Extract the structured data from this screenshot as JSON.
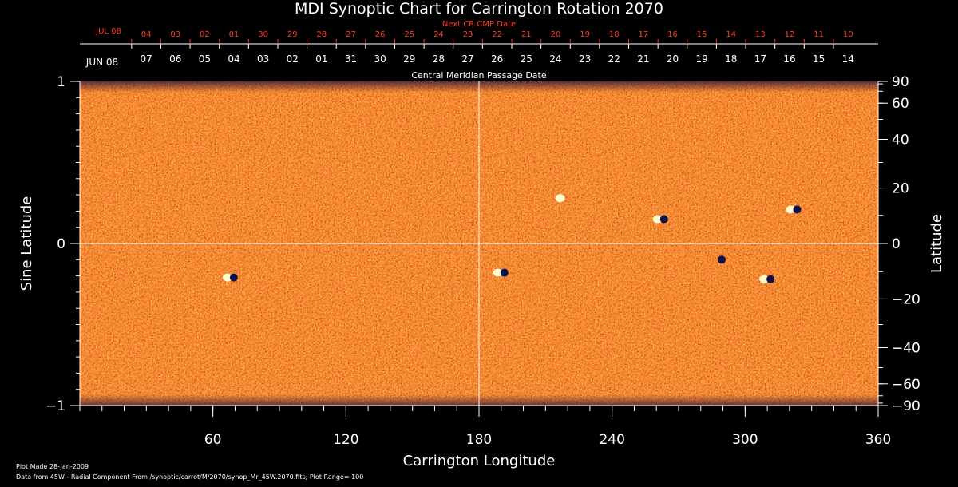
{
  "chart_data": {
    "type": "heatmap",
    "title": "MDI Synoptic Chart for Carrington Rotation 2070",
    "xlabel": "Carrington Longitude",
    "ylabel_left": "Sine Latitude",
    "ylabel_right": "Latitude",
    "xlim": [
      0,
      360
    ],
    "ylim": [
      -1,
      1
    ],
    "x_ticks": [
      60,
      120,
      180,
      240,
      300,
      360
    ],
    "x_minor_step": 10,
    "y_left_ticks": [
      {
        "value": 1,
        "label": "1"
      },
      {
        "value": 0,
        "label": "0"
      },
      {
        "value": -1,
        "label": "−1"
      }
    ],
    "y_left_minor_step": 0.1,
    "y_right_ticks": [
      {
        "deg": 90,
        "label": "90"
      },
      {
        "deg": 60,
        "label": "60"
      },
      {
        "deg": 40,
        "label": "40"
      },
      {
        "deg": 20,
        "label": "20"
      },
      {
        "deg": 0,
        "label": "0"
      },
      {
        "deg": -20,
        "label": "−20"
      },
      {
        "deg": -40,
        "label": "−40"
      },
      {
        "deg": -60,
        "label": "−60"
      },
      {
        "deg": -90,
        "label": "−90"
      }
    ],
    "y_right_minor_step_deg": 10,
    "gridlines": {
      "x": [
        180
      ],
      "y": [
        0
      ]
    },
    "colormap": [
      "#10104a",
      "#c21e00",
      "#e84a12",
      "#ff7a1e",
      "#ffd85a",
      "#fffbd0"
    ],
    "value_range": [
      -100,
      100
    ],
    "active_regions": [
      {
        "lon": 68,
        "sinlat": -0.21,
        "pol": "bipolar"
      },
      {
        "lon": 190,
        "sinlat": -0.18,
        "pol": "bipolar"
      },
      {
        "lon": 218,
        "sinlat": 0.28,
        "pol": "positive"
      },
      {
        "lon": 262,
        "sinlat": 0.15,
        "pol": "bipolar"
      },
      {
        "lon": 288,
        "sinlat": -0.1,
        "pol": "negative"
      },
      {
        "lon": 310,
        "sinlat": -0.22,
        "pol": "bipolar"
      },
      {
        "lon": 322,
        "sinlat": 0.21,
        "pol": "bipolar"
      }
    ],
    "top_axis_label": "Central Meridian Passage Date",
    "cmp_dates": {
      "month_label": "JUN 08",
      "labels": [
        "07",
        "06",
        "05",
        "04",
        "03",
        "02",
        "01",
        "31",
        "30",
        "29",
        "28",
        "27",
        "26",
        "25",
        "24",
        "23",
        "22",
        "21",
        "20",
        "19",
        "18",
        "17",
        "16",
        "15",
        "14"
      ]
    },
    "next_cr_dates": {
      "caption": "Next CR CMP Date",
      "month_label": "JUL 08",
      "labels": [
        "04",
        "03",
        "02",
        "01",
        "30",
        "29",
        "28",
        "27",
        "26",
        "25",
        "24",
        "23",
        "22",
        "21",
        "20",
        "19",
        "18",
        "17",
        "16",
        "15",
        "14",
        "13",
        "12",
        "11",
        "10"
      ]
    }
  },
  "footer": {
    "plot_made": "Plot Made 28-Jan-2009",
    "data_source": "Data from 45W - Radial Component From /synoptic/carrot/M/2070/synop_Mr_45W.2070.fits; Plot Range= 100"
  }
}
